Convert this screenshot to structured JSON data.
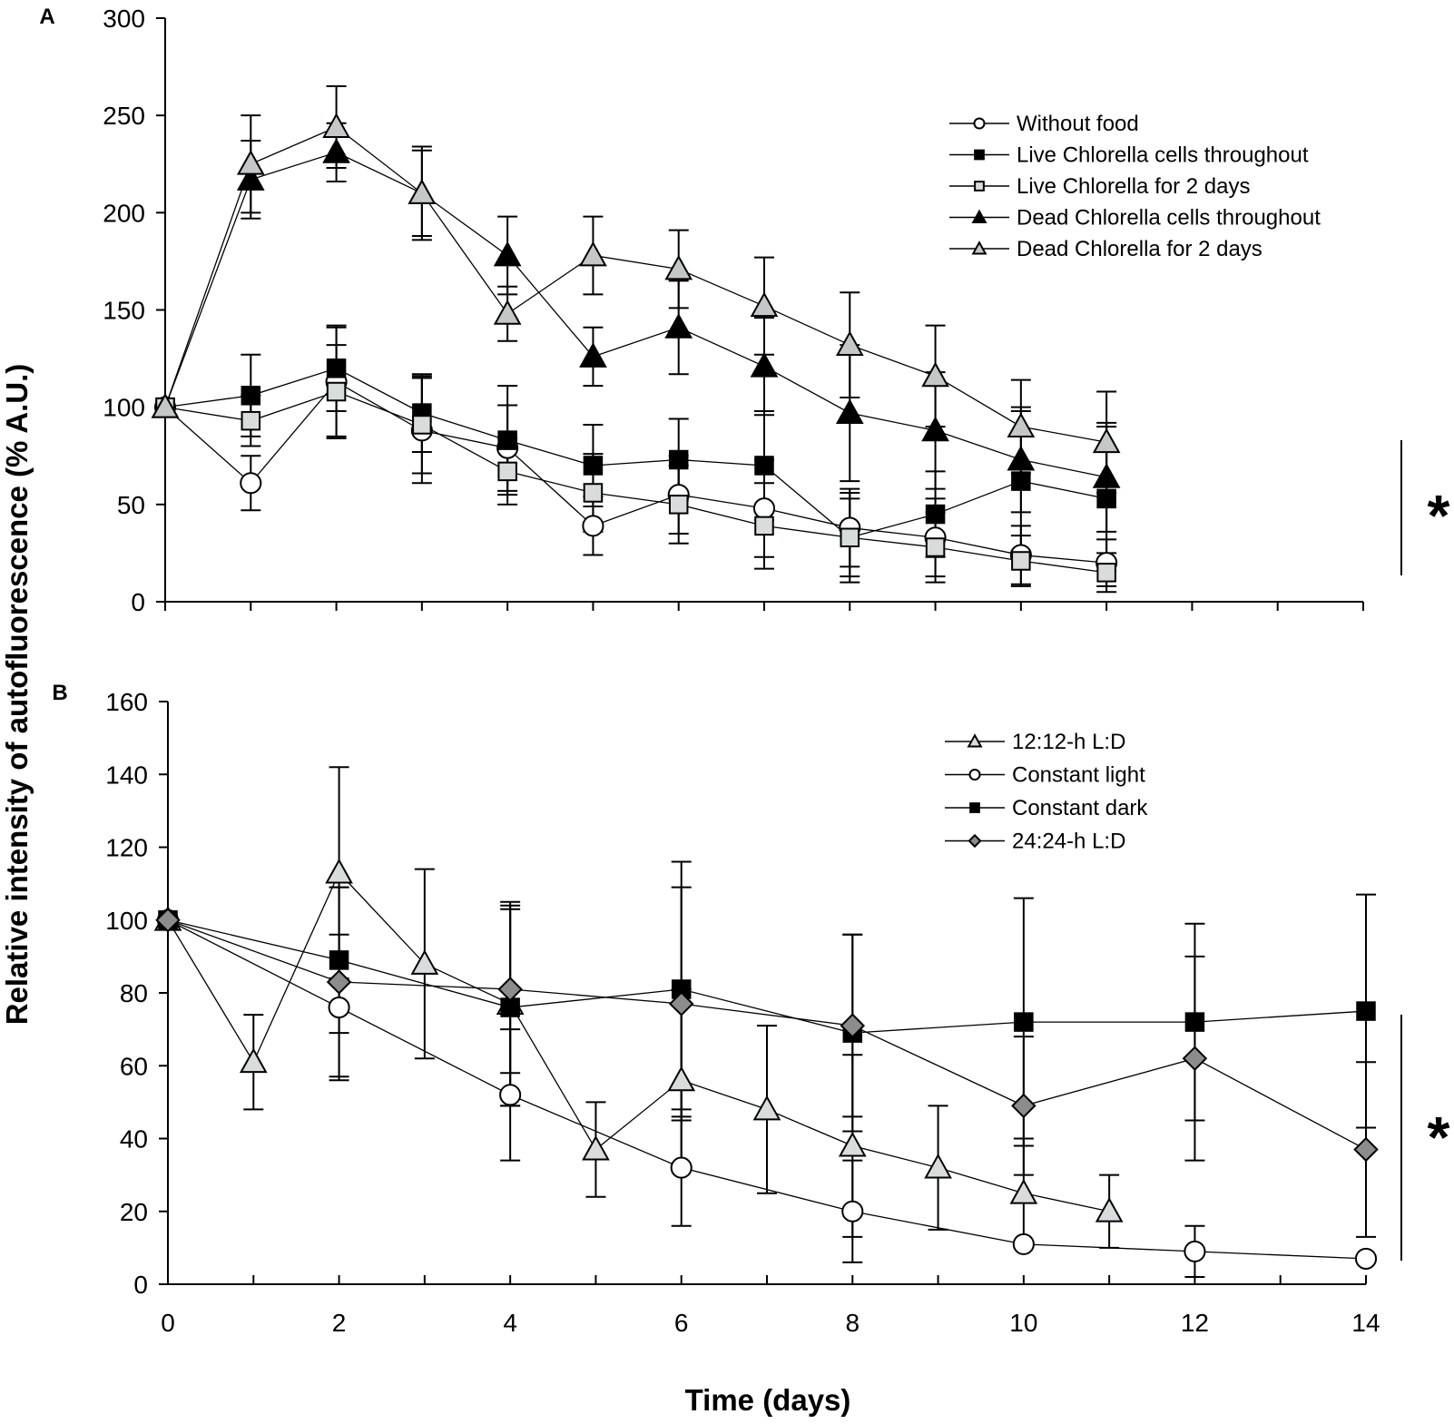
{
  "colors": {
    "white": "#ffffff",
    "light_gray": "#d9dcdc",
    "gray": "#c4c7c7",
    "dark_gray": "#8c8c8c",
    "black": "#000000"
  },
  "figure": {
    "ylabel": "Relative intensity of autofluorescence (% A.U.)",
    "xlabel": "Time (days)"
  },
  "chart_data": [
    {
      "type": "line",
      "panel": "A",
      "xlabel": "Time (days)",
      "ylabel": "Relative intensity of autofluorescence (% A.U.)",
      "xlim": [
        0,
        14
      ],
      "ylim": [
        0,
        300
      ],
      "yticks": [
        "0",
        "50",
        "100",
        "150",
        "200",
        "250",
        "300"
      ],
      "significance": "*",
      "legend_position": "top-right",
      "series": [
        {
          "name": "Without food",
          "marker": "circle",
          "fill": "white",
          "x": [
            0,
            1,
            2,
            3,
            4,
            5,
            6,
            7,
            8,
            9,
            10,
            11
          ],
          "y": [
            100,
            61,
            113,
            88,
            79,
            39,
            55,
            48,
            38,
            33,
            24,
            20
          ],
          "err": [
            0,
            14,
            28,
            27,
            22,
            15,
            20,
            25,
            20,
            20,
            15,
            12
          ]
        },
        {
          "name": "Live Chlorella cells throughout",
          "marker": "square",
          "fill": "black",
          "x": [
            0,
            1,
            2,
            3,
            4,
            5,
            6,
            7,
            8,
            9,
            10,
            11
          ],
          "y": [
            100,
            106,
            120,
            97,
            83,
            70,
            73,
            70,
            33,
            45,
            62,
            53
          ],
          "err": [
            0,
            21,
            22,
            20,
            28,
            21,
            21,
            28,
            20,
            22,
            36,
            37
          ]
        },
        {
          "name": "Live Chlorella for 2 days",
          "marker": "square",
          "fill": "light_gray",
          "x": [
            0,
            1,
            2,
            3,
            4,
            5,
            6,
            7,
            8,
            9,
            10,
            11
          ],
          "y": [
            100,
            93,
            108,
            91,
            67,
            56,
            50,
            39,
            33,
            28,
            21,
            15
          ],
          "err": [
            0,
            13,
            24,
            25,
            17,
            20,
            20,
            22,
            23,
            18,
            13,
            10
          ]
        },
        {
          "name": "Dead Chlorella cells throughout",
          "marker": "triangle",
          "fill": "black",
          "x": [
            0,
            1,
            2,
            3,
            4,
            5,
            6,
            7,
            8,
            9,
            10,
            11
          ],
          "y": [
            100,
            217,
            231,
            210,
            178,
            126,
            141,
            121,
            97,
            88,
            73,
            64
          ],
          "err": [
            0,
            20,
            15,
            22,
            20,
            15,
            24,
            25,
            35,
            30,
            27,
            28
          ]
        },
        {
          "name": "Dead Chlorella for 2 days",
          "marker": "triangle",
          "fill": "gray",
          "x": [
            0,
            1,
            2,
            3,
            4,
            5,
            6,
            7,
            8,
            9,
            10,
            11
          ],
          "y": [
            100,
            225,
            244,
            210,
            148,
            178,
            171,
            152,
            132,
            116,
            90,
            82
          ],
          "err": [
            0,
            25,
            21,
            24,
            14,
            20,
            20,
            25,
            27,
            26,
            24,
            26
          ]
        }
      ]
    },
    {
      "type": "line",
      "panel": "B",
      "xlabel": "Time (days)",
      "ylabel": "Relative intensity of autofluorescence (% A.U.)",
      "xlim": [
        0,
        14
      ],
      "ylim": [
        0,
        160
      ],
      "yticks": [
        "0",
        "20",
        "40",
        "60",
        "80",
        "100",
        "120",
        "140",
        "160"
      ],
      "xticks": [
        "0",
        "2",
        "4",
        "6",
        "8",
        "10",
        "12",
        "14"
      ],
      "significance": "*",
      "legend_position": "top-right",
      "series": [
        {
          "name": "12:12-h L:D",
          "marker": "triangle",
          "fill": "light_gray",
          "x": [
            0,
            1,
            2,
            3,
            4,
            5,
            6,
            7,
            8,
            9,
            10,
            11
          ],
          "y": [
            100,
            61,
            113,
            88,
            77,
            37,
            56,
            48,
            38,
            32,
            25,
            20
          ],
          "err": [
            0,
            13,
            29,
            26,
            28,
            13,
            25,
            23,
            25,
            17,
            15,
            10
          ]
        },
        {
          "name": "Constant light",
          "marker": "circle",
          "fill": "white",
          "x": [
            0,
            2,
            4,
            6,
            8,
            10,
            12,
            14
          ],
          "y": [
            100,
            76,
            52,
            32,
            20,
            11,
            9,
            7
          ],
          "err": [
            0,
            20,
            18,
            16,
            14,
            0,
            7,
            0
          ]
        },
        {
          "name": "Constant dark",
          "marker": "square",
          "fill": "black",
          "x": [
            0,
            2,
            4,
            6,
            8,
            10,
            12,
            14
          ],
          "y": [
            100,
            89,
            76,
            81,
            69,
            72,
            72,
            75
          ],
          "err": [
            0,
            20,
            27,
            35,
            27,
            34,
            27,
            32
          ]
        },
        {
          "name": "24:24-h L:D",
          "marker": "diamond",
          "fill": "dark_gray",
          "x": [
            0,
            2,
            4,
            6,
            8,
            10,
            12,
            14
          ],
          "y": [
            100,
            83,
            81,
            77,
            71,
            49,
            62,
            37
          ],
          "err": [
            0,
            26,
            23,
            32,
            25,
            19,
            28,
            24
          ]
        }
      ]
    }
  ]
}
